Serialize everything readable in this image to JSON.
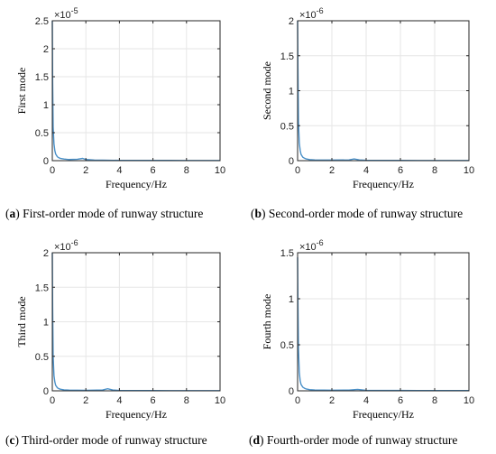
{
  "chart_data": [
    {
      "type": "line",
      "ylabel": "First mode",
      "xlabel": "Frequency/Hz",
      "exponent": "-5",
      "xlim": [
        0,
        10
      ],
      "ylim": [
        0,
        2.5
      ],
      "xticks": [
        "0",
        "2",
        "4",
        "6",
        "8",
        "10"
      ],
      "yticks": [
        "0",
        "0.5",
        "1",
        "1.5",
        "2",
        "2.5"
      ],
      "caption_letter": "a",
      "caption_text": "First-order mode of runway structure",
      "grid": true,
      "line_color": "#4a90c8",
      "series": [
        {
          "x": [
            0,
            0.02,
            0.05,
            0.1,
            0.15,
            0.2,
            0.3,
            0.4,
            0.5,
            0.7,
            1.0,
            1.5,
            1.8,
            2.0,
            2.5,
            3,
            4,
            5,
            6,
            7,
            8,
            9,
            10
          ],
          "y": [
            2.5,
            1.4,
            0.6,
            0.3,
            0.18,
            0.12,
            0.07,
            0.05,
            0.04,
            0.03,
            0.02,
            0.025,
            0.04,
            0.02,
            0.01,
            0.008,
            0.005,
            0.005,
            0.004,
            0.004,
            0.003,
            0.003,
            0.003
          ]
        }
      ]
    },
    {
      "type": "line",
      "ylabel": "Second mode",
      "xlabel": "Frequency/Hz",
      "exponent": "-6",
      "xlim": [
        0,
        10
      ],
      "ylim": [
        0,
        2
      ],
      "xticks": [
        "0",
        "2",
        "4",
        "6",
        "8",
        "10"
      ],
      "yticks": [
        "0",
        "0.5",
        "1",
        "1.5",
        "2"
      ],
      "caption_letter": "b",
      "caption_text": "Second-order mode of runway structure",
      "grid": true,
      "line_color": "#4a90c8",
      "series": [
        {
          "x": [
            0,
            0.02,
            0.05,
            0.1,
            0.15,
            0.2,
            0.3,
            0.4,
            0.5,
            0.7,
            1.0,
            2.0,
            3.0,
            3.3,
            3.6,
            4,
            5,
            6,
            7,
            8,
            9,
            10
          ],
          "y": [
            2.0,
            1.3,
            0.55,
            0.25,
            0.15,
            0.09,
            0.05,
            0.035,
            0.025,
            0.015,
            0.01,
            0.008,
            0.01,
            0.025,
            0.01,
            0.006,
            0.004,
            0.004,
            0.003,
            0.003,
            0.003,
            0.003
          ]
        }
      ]
    },
    {
      "type": "line",
      "ylabel": "Third mode",
      "xlabel": "Frequency/Hz",
      "exponent": "-6",
      "xlim": [
        0,
        10
      ],
      "ylim": [
        0,
        2
      ],
      "xticks": [
        "0",
        "2",
        "4",
        "6",
        "8",
        "10"
      ],
      "yticks": [
        "0",
        "0.5",
        "1",
        "1.5",
        "2"
      ],
      "caption_letter": "c",
      "caption_text": "Third-order mode of runway structure",
      "grid": true,
      "line_color": "#4a90c8",
      "series": [
        {
          "x": [
            0,
            0.02,
            0.05,
            0.1,
            0.15,
            0.2,
            0.3,
            0.4,
            0.5,
            0.7,
            1.0,
            2.0,
            3.0,
            3.3,
            3.6,
            4,
            5,
            6,
            7,
            8,
            9,
            10
          ],
          "y": [
            2.0,
            1.2,
            0.5,
            0.22,
            0.13,
            0.08,
            0.045,
            0.03,
            0.022,
            0.014,
            0.01,
            0.008,
            0.012,
            0.03,
            0.012,
            0.006,
            0.004,
            0.004,
            0.003,
            0.003,
            0.003,
            0.003
          ]
        }
      ]
    },
    {
      "type": "line",
      "ylabel": "Fourth mode",
      "xlabel": "Frequency/Hz",
      "exponent": "-6",
      "xlim": [
        0,
        10
      ],
      "ylim": [
        0,
        1.5
      ],
      "xticks": [
        "0",
        "2",
        "4",
        "6",
        "8",
        "10"
      ],
      "yticks": [
        "0",
        "0.5",
        "1",
        "1.5"
      ],
      "caption_letter": "d",
      "caption_text": "Fourth-order mode of runway structure",
      "grid": true,
      "line_color": "#4a90c8",
      "series": [
        {
          "x": [
            0,
            0.02,
            0.05,
            0.1,
            0.15,
            0.2,
            0.3,
            0.4,
            0.5,
            0.7,
            1.0,
            2.0,
            3.0,
            3.5,
            4,
            5,
            6,
            7,
            8,
            9,
            10
          ],
          "y": [
            1.45,
            0.95,
            0.45,
            0.2,
            0.11,
            0.07,
            0.04,
            0.028,
            0.02,
            0.013,
            0.009,
            0.007,
            0.008,
            0.015,
            0.006,
            0.004,
            0.004,
            0.003,
            0.003,
            0.003,
            0.003
          ]
        }
      ]
    }
  ]
}
